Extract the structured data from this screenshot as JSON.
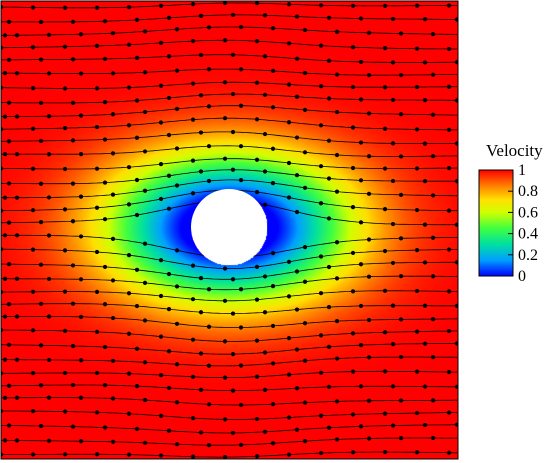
{
  "chart_data": {
    "type": "heatmap",
    "title": "",
    "xlabel": "",
    "ylabel": "",
    "colorbar": {
      "title": "Velocity",
      "range": [
        0,
        1
      ],
      "ticks": [
        1,
        0.8,
        0.6,
        0.4,
        0.2,
        0
      ],
      "tick_labels": [
        "1",
        "0.8",
        "0.6",
        "0.4",
        "0.2",
        "0"
      ],
      "colormap": [
        "#0000ff",
        "#00c8ff",
        "#00ff80",
        "#c8ff00",
        "#ffff00",
        "#ffa500",
        "#ff0000"
      ]
    },
    "field": {
      "description_free_stream_velocity": 1,
      "obstacle": "circular cylinder",
      "obstacle_fill": "#ffffff"
    },
    "overlays": {
      "streamlines": true,
      "streamline_color": "#000000",
      "markers": "dots",
      "marker_color": "#000000"
    },
    "grid": false
  }
}
